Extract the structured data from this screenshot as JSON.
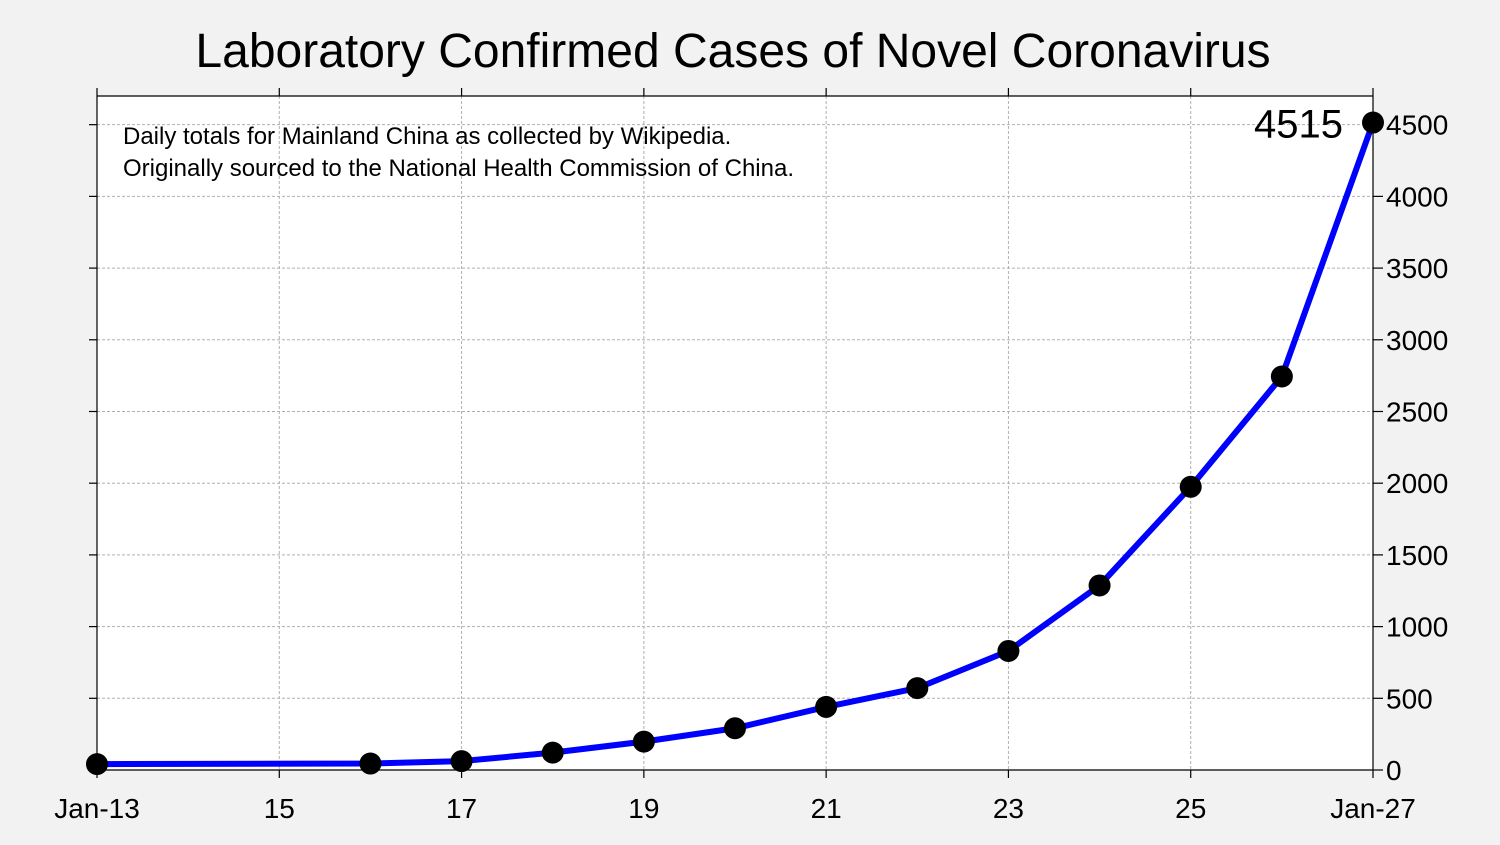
{
  "chart_data": {
    "type": "line",
    "title": "Laboratory Confirmed Cases of Novel Coronavirus",
    "annotation_lines": [
      "Daily totals for Mainland China as collected by Wikipedia.",
      "Originally sourced to the National Health Commission of China."
    ],
    "x": [
      "2020-01-13",
      "2020-01-16",
      "2020-01-17",
      "2020-01-18",
      "2020-01-19",
      "2020-01-20",
      "2020-01-21",
      "2020-01-22",
      "2020-01-23",
      "2020-01-24",
      "2020-01-25",
      "2020-01-26",
      "2020-01-27"
    ],
    "x_day": [
      13,
      16,
      17,
      18,
      19,
      20,
      21,
      22,
      23,
      24,
      25,
      26,
      27
    ],
    "values": [
      41,
      45,
      62,
      121,
      198,
      291,
      440,
      571,
      830,
      1287,
      1975,
      2744,
      4515
    ],
    "last_value_label": "4515",
    "xlim": [
      13,
      27
    ],
    "ylim": [
      0,
      4700
    ],
    "x_ticks": [
      13,
      15,
      17,
      19,
      21,
      23,
      25,
      27
    ],
    "x_tick_labels": [
      "Jan-13",
      "15",
      "17",
      "19",
      "21",
      "23",
      "25",
      "Jan-27"
    ],
    "y_ticks": [
      0,
      500,
      1000,
      1500,
      2000,
      2500,
      3000,
      3500,
      4000,
      4500
    ],
    "y_tick_labels": [
      "0",
      "500",
      "1000",
      "1500",
      "2000",
      "2500",
      "3000",
      "3500",
      "4000",
      "4500"
    ],
    "y_axis_side": "right",
    "grid": true,
    "line_color": "#0000ff",
    "marker_color": "#000000"
  }
}
